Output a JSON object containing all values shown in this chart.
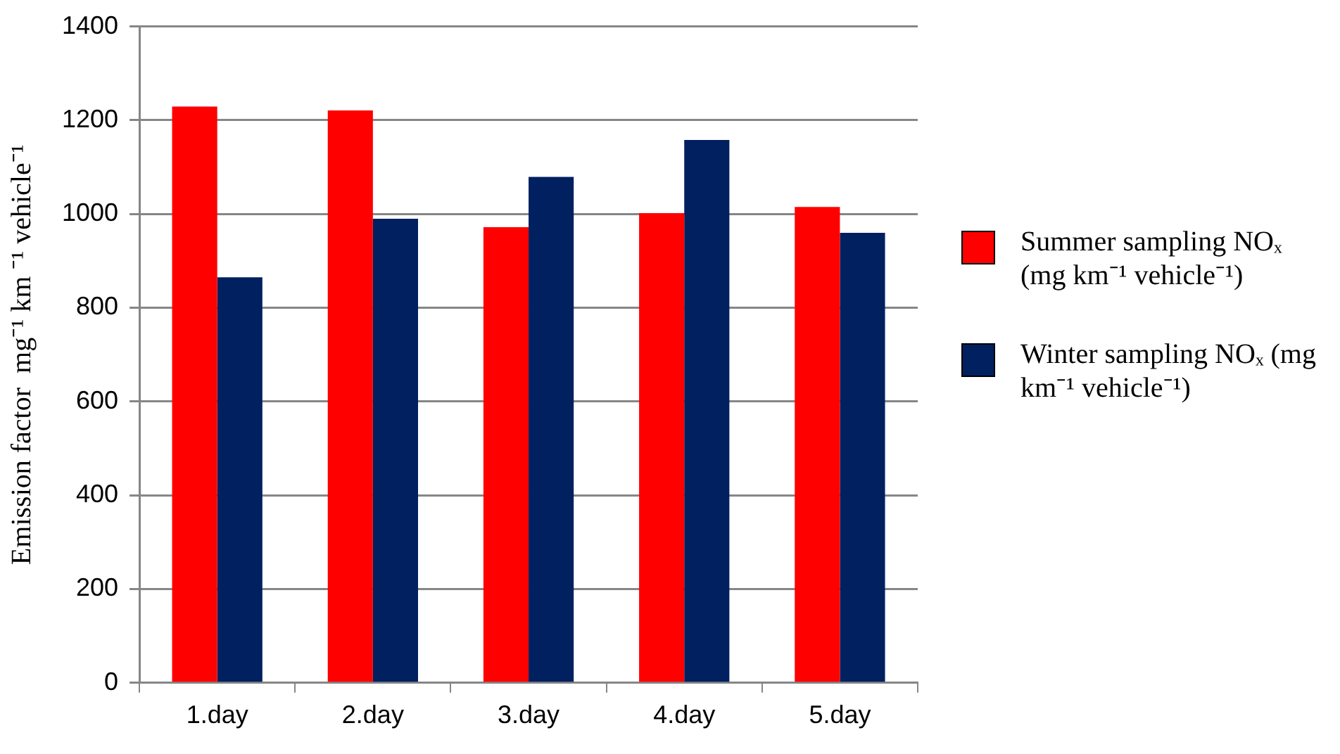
{
  "chart_data": {
    "type": "bar",
    "ylabel": "Emission factor  mg⁻¹ km ⁻¹ vehicle⁻¹",
    "categories": [
      "1.day",
      "2.day",
      "3.day",
      "4.day",
      "5.day"
    ],
    "series": [
      {
        "name": "Summer sampling NOₓ (mg km⁻¹ vehicle⁻¹)",
        "color": "#ff0000",
        "values": [
          1229,
          1221,
          972,
          1002,
          1015
        ]
      },
      {
        "name": "Winter sampling NOₓ (mg km⁻¹ vehicle⁻¹)",
        "color": "#002060",
        "values": [
          865,
          990,
          1079,
          1158,
          960
        ]
      }
    ],
    "ylim": [
      0,
      1400
    ],
    "yticks": [
      0,
      200,
      400,
      600,
      800,
      1000,
      1200,
      1400
    ],
    "grid": "y",
    "legend": "right"
  }
}
